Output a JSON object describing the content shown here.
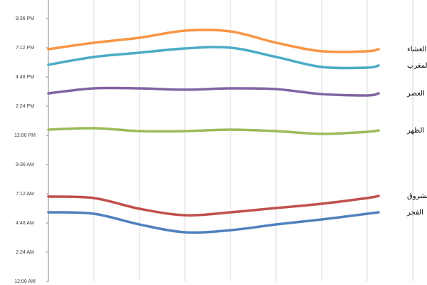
{
  "chart_data": {
    "type": "line",
    "x": [
      0,
      1,
      2,
      3,
      4,
      5,
      6,
      7,
      7.25
    ],
    "xlim": [
      0,
      8
    ],
    "xticks": [
      0,
      1,
      2,
      3,
      4,
      5,
      6,
      7,
      8
    ],
    "ylim": [
      0,
      23.12
    ],
    "yticks": [
      {
        "value": 0,
        "label": "12:00 AM"
      },
      {
        "value": 2.4,
        "label": "2:24 AM"
      },
      {
        "value": 4.8,
        "label": "4:48 AM"
      },
      {
        "value": 7.2,
        "label": "7:12 AM"
      },
      {
        "value": 9.6,
        "label": "9:36 AM"
      },
      {
        "value": 12,
        "label": "12:00 PM"
      },
      {
        "value": 14.4,
        "label": "2:24 PM"
      },
      {
        "value": 16.8,
        "label": "4:48 PM"
      },
      {
        "value": 19.2,
        "label": "7:12 PM"
      },
      {
        "value": 21.6,
        "label": "9:36 PM"
      }
    ],
    "grid": "x",
    "series": [
      {
        "name": "العشاء",
        "color": "#f79646",
        "values": [
          19.08,
          19.61,
          20.02,
          20.6,
          20.54,
          19.61,
          18.91,
          18.91,
          19.08
        ]
      },
      {
        "name": "المغرب",
        "color": "#4bacc6",
        "values": [
          17.8,
          18.44,
          18.79,
          19.14,
          19.2,
          18.44,
          17.62,
          17.56,
          17.74
        ]
      },
      {
        "name": "العصر",
        "color": "#8064a2",
        "values": [
          15.45,
          15.86,
          15.86,
          15.75,
          15.86,
          15.8,
          15.39,
          15.28,
          15.45
        ]
      },
      {
        "name": "الظهر",
        "color": "#9bbb59",
        "values": [
          12.47,
          12.59,
          12.35,
          12.35,
          12.47,
          12.35,
          12.12,
          12.29,
          12.41
        ]
      },
      {
        "name": "الشروق",
        "color": "#c0504d",
        "values": [
          6.97,
          6.85,
          5.97,
          5.44,
          5.68,
          6.03,
          6.38,
          6.85,
          7.02
        ]
      },
      {
        "name": "الفجر",
        "color": "#4f81bd",
        "values": [
          5.68,
          5.56,
          4.68,
          4.04,
          4.21,
          4.68,
          5.09,
          5.56,
          5.68
        ]
      }
    ]
  }
}
